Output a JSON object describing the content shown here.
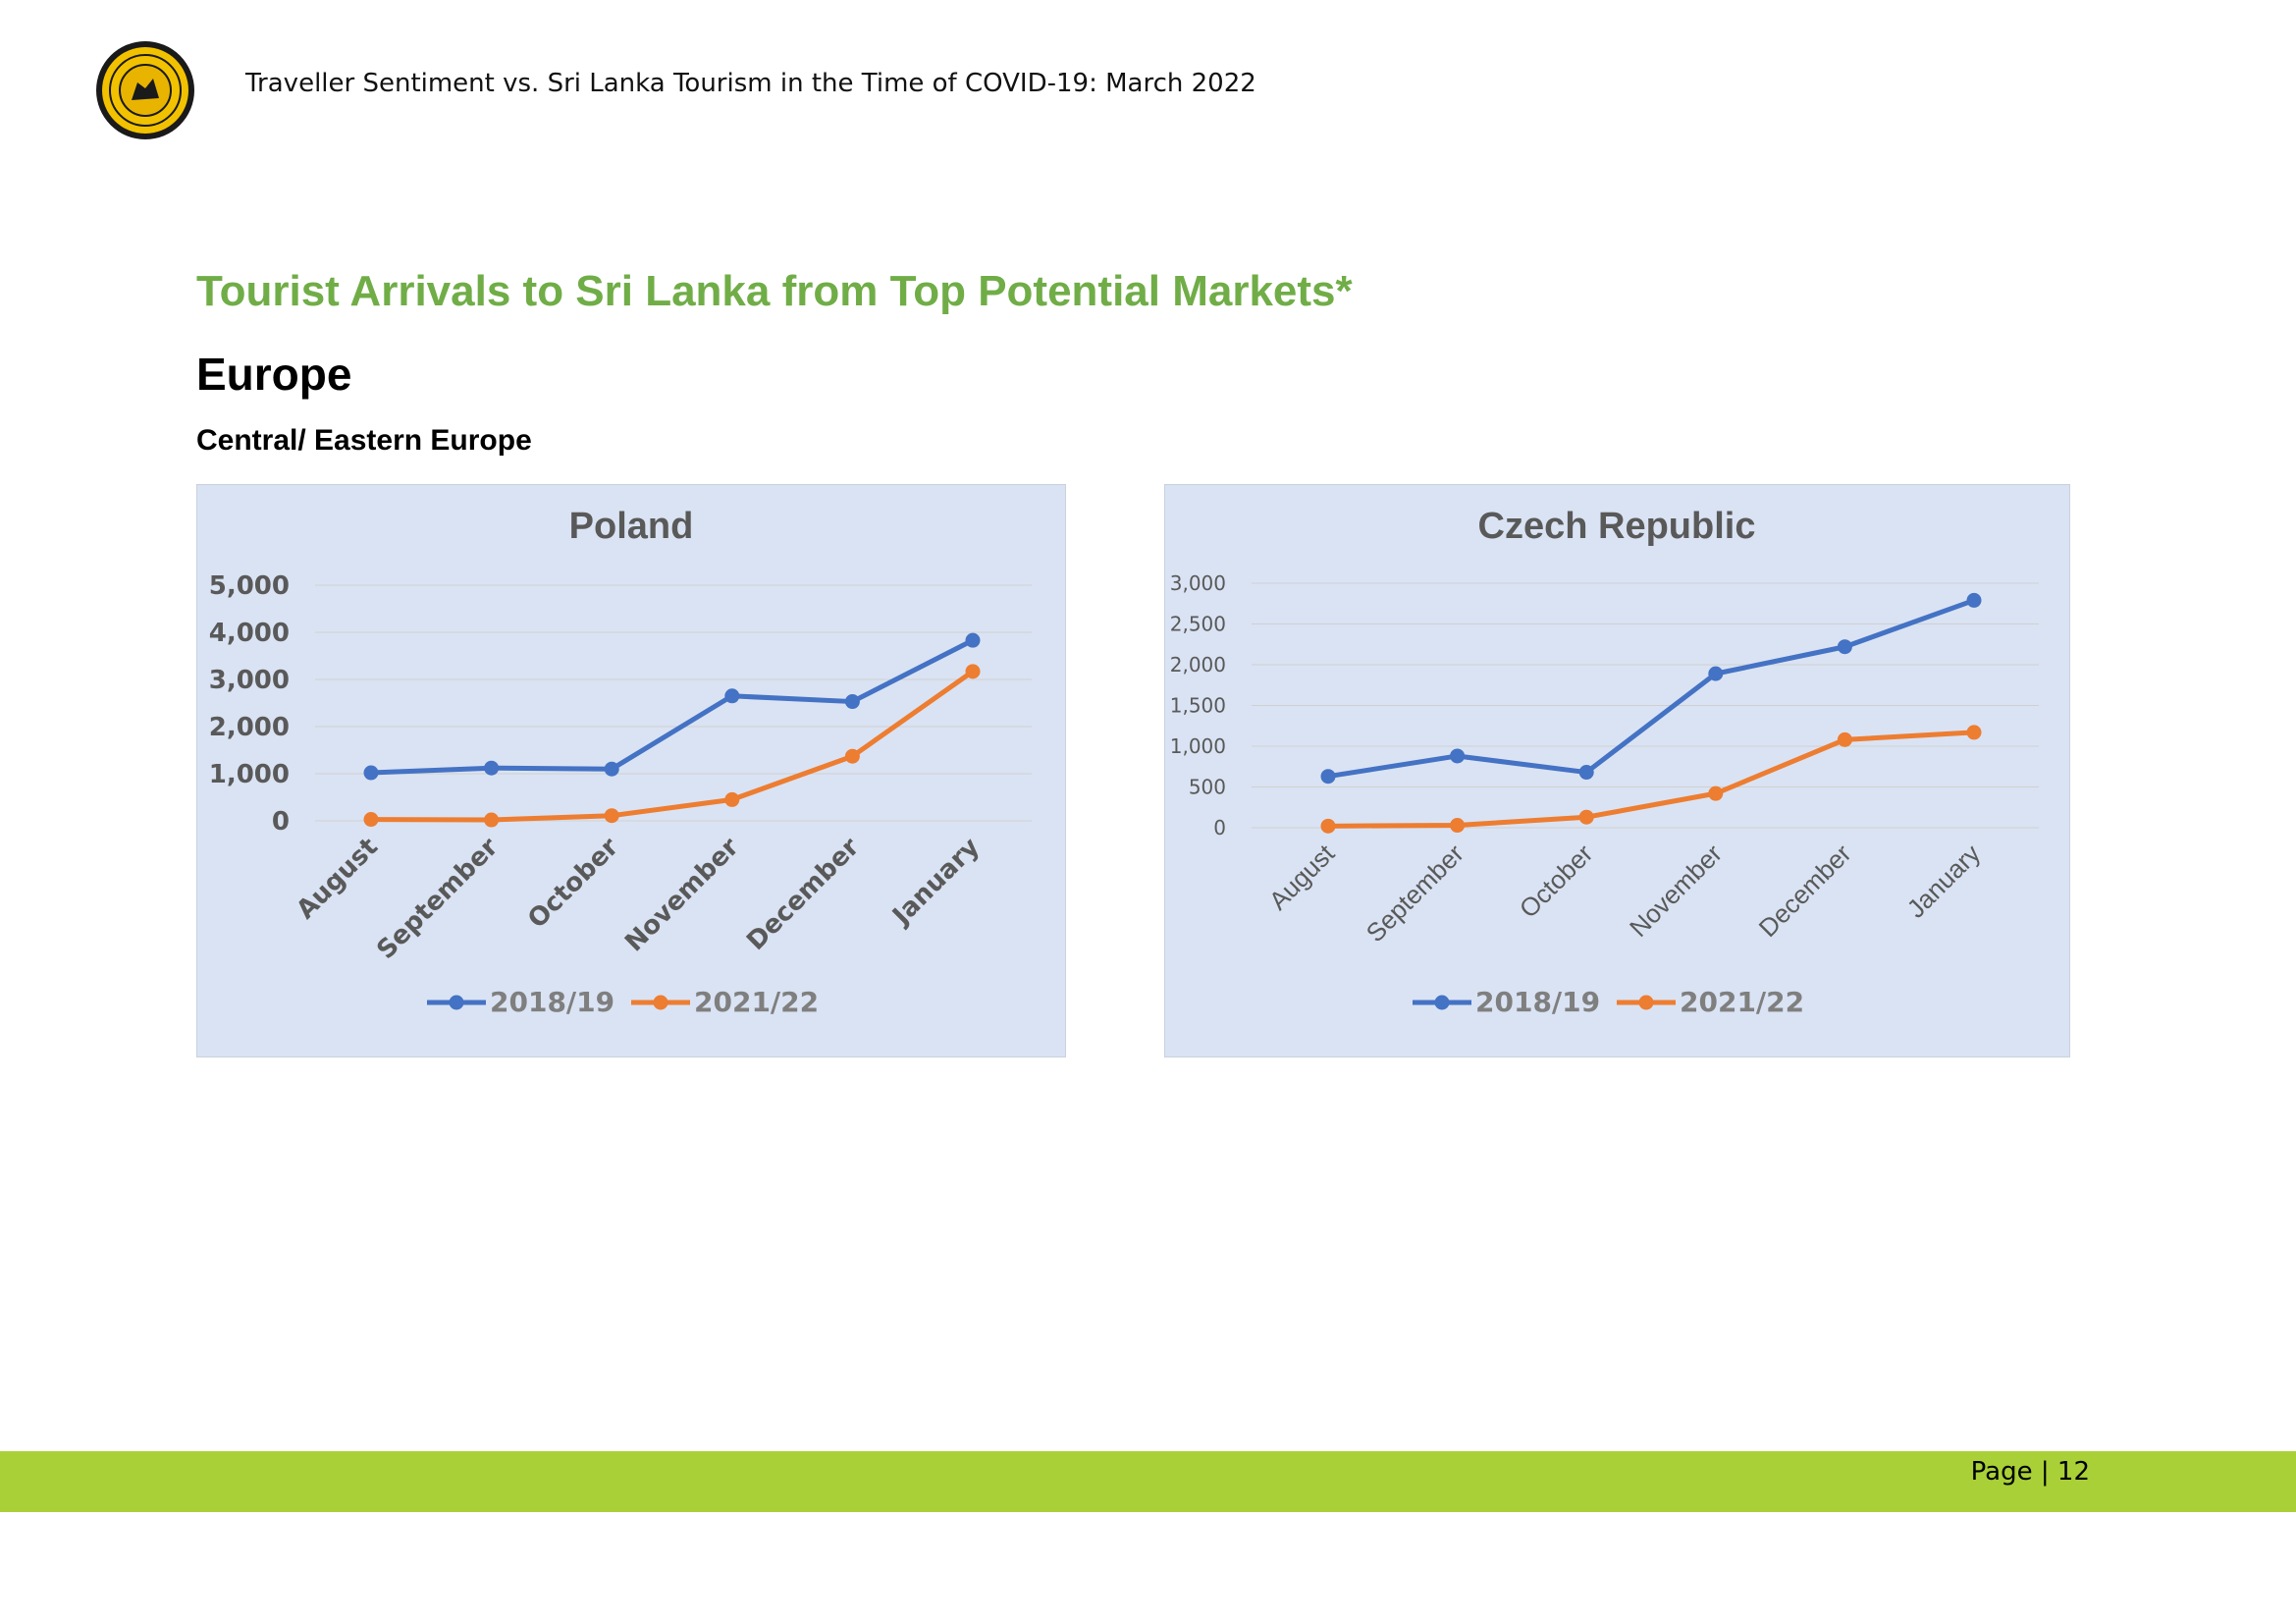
{
  "header": {
    "title": "Traveller Sentiment vs. Sri Lanka Tourism in the Time of COVID-19: March 2022",
    "logo": "sri-lanka-tourism-seal"
  },
  "section_title": "Tourist Arrivals to Sri Lanka from Top Potential Markets*",
  "region": "Europe",
  "subregion": "Central/ Eastern Europe",
  "footer": {
    "page_label": "Page | 12"
  },
  "colors": {
    "series_2018": "#4472c4",
    "series_2021": "#ed7d31",
    "chart_bg": "#dae3f3",
    "title_green": "#70ad47",
    "footer_green": "#a9d037"
  },
  "chart_data": [
    {
      "type": "line",
      "title": "Poland",
      "categories": [
        "August",
        "September",
        "October",
        "November",
        "December",
        "January"
      ],
      "series": [
        {
          "name": "2018/19",
          "values": [
            1020,
            1120,
            1100,
            2650,
            2530,
            3830
          ]
        },
        {
          "name": "2021/22",
          "values": [
            30,
            20,
            110,
            450,
            1370,
            3170
          ]
        }
      ],
      "ylim": [
        0,
        5000
      ],
      "yticks": [
        0,
        1000,
        2000,
        3000,
        4000,
        5000
      ],
      "ytick_labels": [
        "0",
        "1,000",
        "2,000",
        "3,000",
        "4,000",
        "5,000"
      ],
      "grid": true,
      "legend": "bottom"
    },
    {
      "type": "line",
      "title": "Czech Republic",
      "categories": [
        "August",
        "September",
        "October",
        "November",
        "December",
        "January"
      ],
      "series": [
        {
          "name": "2018/19",
          "values": [
            630,
            880,
            680,
            1890,
            2220,
            2790
          ]
        },
        {
          "name": "2021/22",
          "values": [
            20,
            30,
            130,
            420,
            1080,
            1170
          ]
        }
      ],
      "ylim": [
        0,
        3000
      ],
      "yticks": [
        0,
        500,
        1000,
        1500,
        2000,
        2500,
        3000
      ],
      "ytick_labels": [
        "0",
        "500",
        "1,000",
        "1,500",
        "2,000",
        "2,500",
        "3,000"
      ],
      "grid": true,
      "legend": "bottom"
    }
  ]
}
